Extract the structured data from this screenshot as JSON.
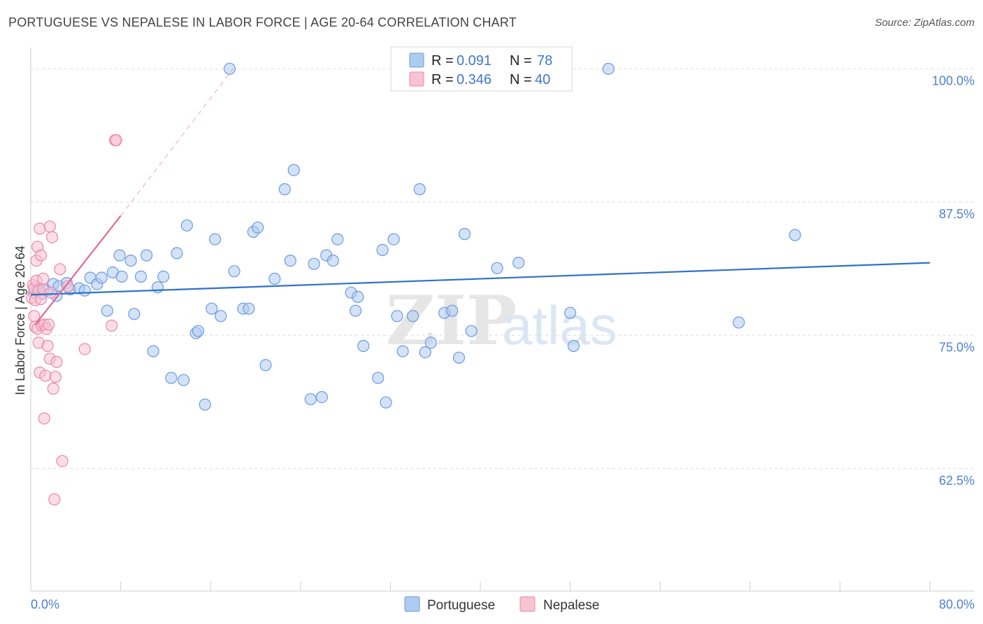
{
  "title": "PORTUGUESE VS NEPALESE IN LABOR FORCE | AGE 20-64 CORRELATION CHART",
  "source": "Source: ZipAtlas.com",
  "watermark": {
    "zip": "ZIP",
    "atlas": "atlas"
  },
  "legend": {
    "series": [
      {
        "name": "Portuguese",
        "r_label": "R =",
        "r_value": "0.091",
        "n_label": "N =",
        "n_value": "78"
      },
      {
        "name": "Nepalese",
        "r_label": "R =",
        "r_value": "0.346",
        "n_label": "N =",
        "n_value": "40"
      }
    ]
  },
  "colors": {
    "portuguese_fill": "#aecbf0",
    "portuguese_stroke": "#6b9be0",
    "portuguese_line": "#2f72c9",
    "nepalese_fill": "#f8c3d3",
    "nepalese_stroke": "#eb87a6",
    "nepalese_line": "#e06a95",
    "value_text": "#3e78c9",
    "grid": "#dedede"
  },
  "chart_data": {
    "type": "scatter",
    "title": "PORTUGUESE VS NEPALESE IN LABOR FORCE | AGE 20-64 CORRELATION CHART",
    "xlabel": "",
    "ylabel": "In Labor Force | Age 20-64",
    "xlim": [
      0,
      80
    ],
    "ylim": [
      51.0,
      101.2
    ],
    "x_tick_labels": [
      {
        "value": 0,
        "label": "0.0%"
      },
      {
        "value": 80,
        "label": "80.0%"
      }
    ],
    "x_minor_ticks": [
      0,
      8,
      16,
      24,
      32,
      40,
      48,
      56,
      64,
      72,
      80
    ],
    "y_ticks": [
      {
        "value": 100,
        "label": "100.0%"
      },
      {
        "value": 87.5,
        "label": "87.5%"
      },
      {
        "value": 75,
        "label": "75.0%"
      },
      {
        "value": 62.5,
        "label": "62.5%"
      }
    ],
    "y_grid": [
      100,
      87.5,
      75,
      62.5
    ],
    "series": [
      {
        "name": "Portuguese",
        "trend": {
          "x": [
            0,
            80
          ],
          "y": [
            78.8,
            81.8
          ]
        },
        "points": [
          [
            0.3,
            79.0
          ],
          [
            0.7,
            79.3
          ],
          [
            1.0,
            78.9
          ],
          [
            1.4,
            79.2
          ],
          [
            2.0,
            79.8
          ],
          [
            2.3,
            78.7
          ],
          [
            2.5,
            79.6
          ],
          [
            3.2,
            79.9
          ],
          [
            3.5,
            79.3
          ],
          [
            4.3,
            79.4
          ],
          [
            4.8,
            79.2
          ],
          [
            5.3,
            80.4
          ],
          [
            5.9,
            79.8
          ],
          [
            6.3,
            80.4
          ],
          [
            6.8,
            77.3
          ],
          [
            7.3,
            80.9
          ],
          [
            7.9,
            82.5
          ],
          [
            8.1,
            80.5
          ],
          [
            8.9,
            82.0
          ],
          [
            9.2,
            77.0
          ],
          [
            9.8,
            80.5
          ],
          [
            10.3,
            82.5
          ],
          [
            10.9,
            73.5
          ],
          [
            11.3,
            79.5
          ],
          [
            11.8,
            80.5
          ],
          [
            12.5,
            71.0
          ],
          [
            13.0,
            82.7
          ],
          [
            13.6,
            70.8
          ],
          [
            13.9,
            85.3
          ],
          [
            14.7,
            75.2
          ],
          [
            14.9,
            75.4
          ],
          [
            15.5,
            68.5
          ],
          [
            16.1,
            77.5
          ],
          [
            16.4,
            84.0
          ],
          [
            16.9,
            76.8
          ],
          [
            17.7,
            100.0
          ],
          [
            18.1,
            81.0
          ],
          [
            18.9,
            77.5
          ],
          [
            19.4,
            77.5
          ],
          [
            19.8,
            84.7
          ],
          [
            20.2,
            85.1
          ],
          [
            20.9,
            72.2
          ],
          [
            21.7,
            80.3
          ],
          [
            22.6,
            88.7
          ],
          [
            23.1,
            82.0
          ],
          [
            23.4,
            90.5
          ],
          [
            24.9,
            69.0
          ],
          [
            25.2,
            81.7
          ],
          [
            25.9,
            69.2
          ],
          [
            26.3,
            82.5
          ],
          [
            26.9,
            82.0
          ],
          [
            27.3,
            84.0
          ],
          [
            28.5,
            79.0
          ],
          [
            28.9,
            77.3
          ],
          [
            29.1,
            78.6
          ],
          [
            29.6,
            74.0
          ],
          [
            30.9,
            71.0
          ],
          [
            31.3,
            83.0
          ],
          [
            31.6,
            68.7
          ],
          [
            32.3,
            84.0
          ],
          [
            32.6,
            76.8
          ],
          [
            33.1,
            73.5
          ],
          [
            34.0,
            76.8
          ],
          [
            34.6,
            88.7
          ],
          [
            35.1,
            73.4
          ],
          [
            35.6,
            74.3
          ],
          [
            36.8,
            77.1
          ],
          [
            37.5,
            77.3
          ],
          [
            38.1,
            72.9
          ],
          [
            38.6,
            84.5
          ],
          [
            39.2,
            75.4
          ],
          [
            41.5,
            81.3
          ],
          [
            43.4,
            81.8
          ],
          [
            48.0,
            77.1
          ],
          [
            48.3,
            74.0
          ],
          [
            51.4,
            100.0
          ],
          [
            63.0,
            76.2
          ],
          [
            68.0,
            84.4
          ]
        ]
      },
      {
        "name": "Nepalese",
        "trend": {
          "x": [
            0.4,
            8.0
          ],
          "y": [
            76.0,
            86.2
          ]
        },
        "trend_extended": {
          "x": [
            8.0,
            18.0
          ],
          "y": [
            86.2,
            100.0
          ]
        },
        "points": [
          [
            0.1,
            78.5
          ],
          [
            0.2,
            79.7
          ],
          [
            0.3,
            79.4
          ],
          [
            0.3,
            76.8
          ],
          [
            0.4,
            75.8
          ],
          [
            0.4,
            78.3
          ],
          [
            0.5,
            80.1
          ],
          [
            0.5,
            82.0
          ],
          [
            0.6,
            83.3
          ],
          [
            0.6,
            75.6
          ],
          [
            0.7,
            79.2
          ],
          [
            0.7,
            74.3
          ],
          [
            0.8,
            71.5
          ],
          [
            0.8,
            85.0
          ],
          [
            0.9,
            82.5
          ],
          [
            0.9,
            78.4
          ],
          [
            1.0,
            75.9
          ],
          [
            1.1,
            80.3
          ],
          [
            1.1,
            79.3
          ],
          [
            1.2,
            76.0
          ],
          [
            1.2,
            67.2
          ],
          [
            1.3,
            71.2
          ],
          [
            1.4,
            75.6
          ],
          [
            1.5,
            74.0
          ],
          [
            1.6,
            76.0
          ],
          [
            1.7,
            85.2
          ],
          [
            1.7,
            72.8
          ],
          [
            1.8,
            79.0
          ],
          [
            1.9,
            84.2
          ],
          [
            2.0,
            70.0
          ],
          [
            2.1,
            59.6
          ],
          [
            2.2,
            71.1
          ],
          [
            2.3,
            72.5
          ],
          [
            2.6,
            81.2
          ],
          [
            2.8,
            63.2
          ],
          [
            3.3,
            79.6
          ],
          [
            4.8,
            73.7
          ],
          [
            7.5,
            93.3
          ],
          [
            7.6,
            93.3
          ],
          [
            7.2,
            75.9
          ]
        ]
      }
    ]
  }
}
